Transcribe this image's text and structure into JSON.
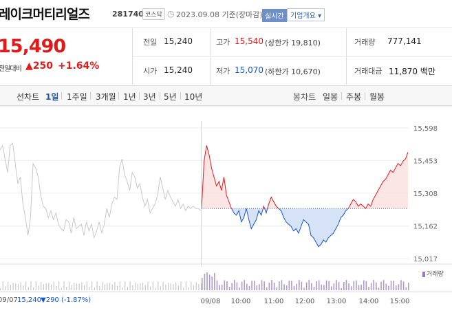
{
  "header": {
    "name": "레이크머티리얼즈",
    "code": "281740",
    "market": "코스닥",
    "date_label": "2023.09.08 기준(장마감)",
    "realtime_badge": "실시간",
    "company_info_label": "기업개요 ▾"
  },
  "price": {
    "current": "15,490",
    "prev_label": "전일대비",
    "change_arrow": "▲",
    "change_amount": "250",
    "change_pct": "+1.64%"
  },
  "summary": {
    "prev_close": {
      "label": "전일",
      "value": "15,240"
    },
    "open": {
      "label": "시가",
      "value": "15,240"
    },
    "high": {
      "label": "고가",
      "value": "15,540",
      "sub": "(상한가 19,810)"
    },
    "low": {
      "label": "저가",
      "value": "15,070",
      "sub": "(하한가 10,670)"
    },
    "volume": {
      "label": "거래량",
      "value": "777,141"
    },
    "amount": {
      "label": "거래대금",
      "value": "11,870 백만"
    }
  },
  "periods": {
    "line_chart_label": "선차트",
    "items": [
      "1일",
      "1주일",
      "3개월",
      "1년",
      "3년",
      "5년",
      "10년"
    ],
    "active": "1일",
    "candle_chart_label": "봉차트",
    "candle_items": [
      "일봉",
      "주봉",
      "월봉"
    ]
  },
  "colors": {
    "up": "#e21919",
    "down": "#1559c9",
    "prev_day": "#c8c8c8",
    "volume": "#a89ccc",
    "prev_volume": "#c8c8c8"
  },
  "chart_data": {
    "type": "line",
    "title": "",
    "y_ticks": [
      "15,598",
      "15,453",
      "15,308",
      "15,162",
      "15,017"
    ],
    "y_tick_values": [
      15598,
      15453,
      15308,
      15162,
      15017
    ],
    "x_ticks": [
      "09/08",
      "10:00",
      "11:00",
      "12:00",
      "13:00",
      "14:00",
      "15:00"
    ],
    "reference_price": 15240,
    "ylim": [
      15017,
      15598
    ],
    "prev_day": {
      "label": "09/07",
      "values": [
        15500,
        15520,
        15460,
        15400,
        15520,
        15530,
        15440,
        15350,
        15380,
        15260,
        15200,
        15120,
        15200,
        15440,
        15420,
        15380,
        15300,
        15250,
        15240,
        15200,
        15230,
        15190,
        15220,
        15170,
        15150,
        15140,
        15190,
        15180,
        15130,
        15200,
        15150,
        15160,
        15170,
        15120,
        15180,
        15140,
        15170,
        15110,
        15140,
        15180,
        15130,
        15170,
        15240,
        15200,
        15260,
        15290,
        15280,
        15420,
        15460,
        15390,
        15360,
        15320,
        15400,
        15380,
        15330,
        15350,
        15290,
        15250,
        15280,
        15220,
        15240,
        15260,
        15300,
        15380,
        15330,
        15280,
        15320,
        15290,
        15270,
        15250,
        15280,
        15240,
        15260,
        15230,
        15250,
        15240,
        15250,
        15240,
        15240,
        15230
      ],
      "close": "15,240",
      "change_arrow": "▼",
      "change": "290",
      "change_pct": "(-1.87%)"
    },
    "today": {
      "label": "09/08",
      "values": [
        15240,
        15450,
        15520,
        15480,
        15420,
        15380,
        15340,
        15360,
        15320,
        15380,
        15300,
        15270,
        15240,
        15220,
        15210,
        15230,
        15180,
        15200,
        15240,
        15190,
        15150,
        15170,
        15190,
        15230,
        15210,
        15250,
        15220,
        15260,
        15290,
        15270,
        15250,
        15240,
        15230,
        15200,
        15180,
        15170,
        15160,
        15140,
        15150,
        15130,
        15160,
        15190,
        15180,
        15170,
        15120,
        15110,
        15090,
        15070,
        15080,
        15100,
        15090,
        15110,
        15120,
        15130,
        15150,
        15170,
        15200,
        15210,
        15230,
        15240,
        15260,
        15280,
        15270,
        15250,
        15260,
        15250,
        15240,
        15260,
        15250,
        15280,
        15300,
        15320,
        15340,
        15360,
        15370,
        15390,
        15410,
        15400,
        15420,
        15440,
        15430,
        15450,
        15460,
        15490
      ]
    },
    "volume_label": "거래량"
  }
}
